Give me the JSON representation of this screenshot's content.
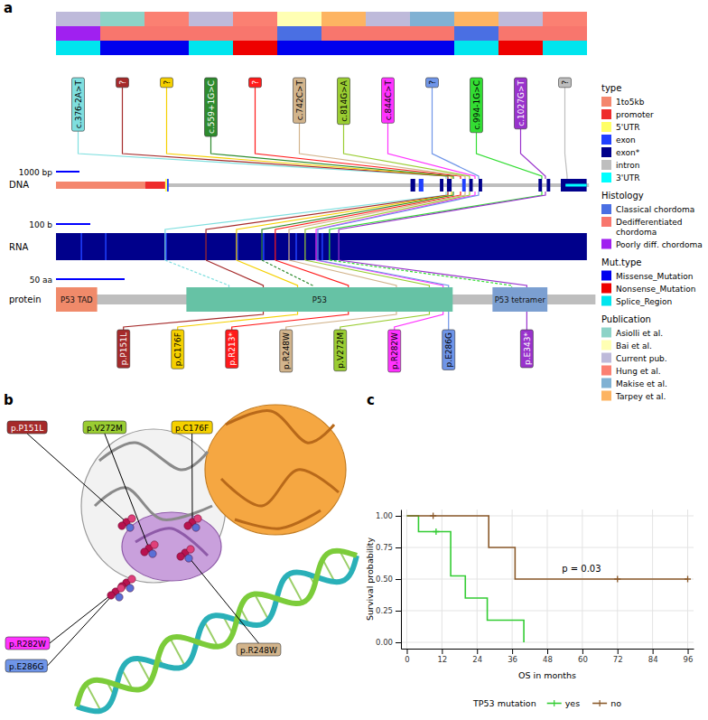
{
  "panel_a": {
    "letter": "a",
    "track_labels": {
      "dna": "DNA",
      "rna": "RNA",
      "protein": "protein"
    },
    "scale_bars": {
      "dna": {
        "value": 1000,
        "label": "1000 bp"
      },
      "rna": {
        "value": 100,
        "label": "100 b"
      },
      "protein": {
        "value": 50,
        "label": "50 aa"
      }
    },
    "legends": [
      {
        "title": "type",
        "items": [
          {
            "name": "1to5kb",
            "color": "#f4876e"
          },
          {
            "name": "promoter",
            "color": "#ee2c2c"
          },
          {
            "name": "5'UTR",
            "color": "#ffff66"
          },
          {
            "name": "exon",
            "color": "#2040ff"
          },
          {
            "name": "exon*",
            "color": "#00008b"
          },
          {
            "name": "intron",
            "color": "#bebebe"
          },
          {
            "name": "3'UTR",
            "color": "#00ffff"
          }
        ]
      },
      {
        "title": "Histology",
        "items": [
          {
            "name": "Classical chordoma",
            "color": "#4a6fe3"
          },
          {
            "name": "Dedifferentiated chordoma",
            "color": "#f8766d"
          },
          {
            "name": "Poorly diff. chordoma",
            "color": "#a020f0"
          }
        ]
      },
      {
        "title": "Mut.type",
        "items": [
          {
            "name": "Missense_Mutation",
            "color": "#0000ee"
          },
          {
            "name": "Nonsense_Mutation",
            "color": "#ee0000"
          },
          {
            "name": "Splice_Region",
            "color": "#00e5ee"
          }
        ]
      },
      {
        "title": "Publication",
        "items": [
          {
            "name": "Asiolli et al.",
            "color": "#8dd3c7"
          },
          {
            "name": "Bai et al.",
            "color": "#ffffb3"
          },
          {
            "name": "Current pub.",
            "color": "#bebada"
          },
          {
            "name": "Hung et al.",
            "color": "#fb8072"
          },
          {
            "name": "Makise et al.",
            "color": "#80b1d3"
          },
          {
            "name": "Tarpey et al.",
            "color": "#fdb462"
          }
        ]
      }
    ],
    "dna_features": [
      {
        "type": "intron",
        "start": 0,
        "end": 22700
      },
      {
        "type": "1to5kb",
        "start": 0,
        "end": 3800
      },
      {
        "type": "promoter",
        "start": 3800,
        "end": 4650
      },
      {
        "type": "5'UTR",
        "start": 4650,
        "end": 4730
      },
      {
        "type": "exon",
        "start": 4730,
        "end": 4800
      },
      {
        "type": "exon*",
        "start": 15100,
        "end": 15300
      },
      {
        "type": "exon",
        "start": 15450,
        "end": 15650
      },
      {
        "type": "exon*",
        "start": 16350,
        "end": 16500
      },
      {
        "type": "exon*",
        "start": 16650,
        "end": 16850
      },
      {
        "type": "exon",
        "start": 17300,
        "end": 17450
      },
      {
        "type": "exon*",
        "start": 17600,
        "end": 17750
      },
      {
        "type": "exon*",
        "start": 18000,
        "end": 18150
      },
      {
        "type": "exon*",
        "start": 20550,
        "end": 20700
      },
      {
        "type": "exon*",
        "start": 20900,
        "end": 21050
      },
      {
        "type": "exon*",
        "start": 21500,
        "end": 22600
      },
      {
        "type": "3'UTR",
        "start": 21700,
        "end": 22600
      }
    ],
    "rna": {
      "length": 1547,
      "exon_boundaries": [
        74,
        145,
        321,
        529,
        605,
        700,
        776
      ]
    },
    "protein": {
      "length": 393,
      "domains": [
        {
          "name": "P53 TAD",
          "start": 0,
          "end": 30,
          "color": "#f08a6a"
        },
        {
          "name": "P53",
          "start": 95,
          "end": 289,
          "color": "#66c2a5"
        },
        {
          "name": "P53 tetramer",
          "start": 318,
          "end": 358,
          "color": "#7b9fd1"
        }
      ]
    },
    "mutations": [
      {
        "dna_label": "c.376-2A>T",
        "color": "#7fdfdf",
        "publication": "Current pub.",
        "histology": "Poorly diff. chordoma",
        "mut_type": "Splice_Region",
        "dna_pos": 16615,
        "rna_pos": 318,
        "protein_pos": 126
      },
      {
        "dna_label": "?",
        "color": "#a52a2a",
        "publication": "Asiolli et al.",
        "histology": "Dedifferentiated chordoma",
        "mut_type": "Missense_Mutation",
        "dna_pos": 16692,
        "rna_pos": 437,
        "protein_pos": 151,
        "protein_label": "p.P151L"
      },
      {
        "dna_label": "?",
        "color": "#f5d000",
        "publication": "Hung et al.",
        "histology": "Dedifferentiated chordoma",
        "mut_type": "Missense_Mutation",
        "dna_pos": 16846,
        "rna_pos": 526,
        "protein_pos": 176,
        "protein_label": "p.C176F"
      },
      {
        "dna_label": "c.559+1G>C",
        "color": "#2e8b2e",
        "publication": "Current pub.",
        "histology": "Dedifferentiated chordoma",
        "mut_type": "Splice_Region",
        "dna_pos": 16923,
        "rna_pos": 600,
        "protein_pos": 187
      },
      {
        "dna_label": "?",
        "color": "#ff1a1a",
        "publication": "Hung et al.",
        "histology": "Dedifferentiated chordoma",
        "mut_type": "Nonsense_Mutation",
        "dna_pos": 17231,
        "rna_pos": 639,
        "protein_pos": 213,
        "protein_label": "p.R213*"
      },
      {
        "dna_label": "c.742C>T",
        "color": "#d2b48c",
        "publication": "Bai et al.",
        "histology": "Classical chordoma",
        "mut_type": "Missense_Mutation",
        "dna_pos": 17423,
        "rna_pos": 679,
        "protein_pos": 248,
        "protein_label": "p.R248W"
      },
      {
        "dna_label": "c.814G>A",
        "color": "#9acd32",
        "publication": "Tarpey et al.",
        "histology": "Dedifferentiated chordoma",
        "mut_type": "Missense_Mutation",
        "dna_pos": 17615,
        "rna_pos": 726,
        "protein_pos": 272,
        "protein_label": "p.V272M"
      },
      {
        "dna_label": "c.844C>T",
        "color": "#ff33ff",
        "publication": "Current pub.",
        "histology": "Dedifferentiated chordoma",
        "mut_type": "Missense_Mutation",
        "dna_pos": 17846,
        "rna_pos": 758,
        "protein_pos": 282,
        "protein_label": "p.R282W"
      },
      {
        "dna_label": "?",
        "color": "#6f95e8",
        "publication": "Makise et al.",
        "histology": "Dedifferentiated chordoma",
        "mut_type": "Missense_Mutation",
        "dna_pos": 18000,
        "rna_pos": 763,
        "protein_pos": 286,
        "protein_label": "p.E286G"
      },
      {
        "dna_label": "c.994-1G>C",
        "color": "#33dd33",
        "publication": "Tarpey et al.",
        "histology": "Classical chordoma",
        "mut_type": "Splice_Region",
        "dna_pos": 20692,
        "rna_pos": 797,
        "protein_pos": 332
      },
      {
        "dna_label": "c.1027G>T",
        "color": "#9932cc",
        "publication": "Current pub.",
        "histology": "Dedifferentiated chordoma",
        "mut_type": "Nonsense_Mutation",
        "dna_pos": 20846,
        "rna_pos": 824,
        "protein_pos": 343,
        "protein_label": "p.E343*"
      },
      {
        "dna_label": "?",
        "color": "#bebebe",
        "publication": "Hung et al.",
        "histology": "Dedifferentiated chordoma",
        "mut_type": "Splice_Region",
        "dna_pos": 21769
      }
    ]
  },
  "panel_b": {
    "letter": "b",
    "labels": [
      "p.P151L",
      "p.V272M",
      "p.C176F",
      "p.R282W",
      "p.E286G",
      "p.R248W"
    ]
  },
  "panel_c": {
    "letter": "c"
  },
  "chart_data": {
    "type": "line",
    "line_style": "step",
    "x_label": "OS in months",
    "y_label": "Survival probability",
    "xlim": [
      -2,
      98
    ],
    "xticks": [
      0,
      12,
      24,
      36,
      48,
      60,
      72,
      84,
      96
    ],
    "ylim": [
      -0.05,
      1.05
    ],
    "yticks": [
      {
        "value": 0,
        "label": "0.00"
      },
      0.25,
      {
        "value": 0.5,
        "label": "0.50"
      },
      0.75,
      {
        "value": 1,
        "label": "1.00"
      }
    ],
    "grid": true,
    "legend": "bottom",
    "legend_title": "TP53 mutation",
    "annotations": [
      {
        "text": "p = 0.03"
      }
    ],
    "series": [
      {
        "name": "yes",
        "color": "#33cc33",
        "x": [
          0,
          4,
          15,
          20,
          27.5,
          40
        ],
        "values": [
          1,
          0.875,
          0.525,
          0.35,
          0.175,
          0
        ],
        "censored": {
          "x": [
            10
          ],
          "values": [
            0.875
          ]
        }
      },
      {
        "name": "no",
        "color": "#8b5a2b",
        "x": [
          0,
          28,
          37,
          96
        ],
        "values": [
          1,
          0.75,
          0.5,
          0.5
        ],
        "censored": {
          "x": [
            9,
            72,
            96
          ],
          "values": [
            1,
            0.5,
            0.5
          ]
        }
      }
    ]
  }
}
